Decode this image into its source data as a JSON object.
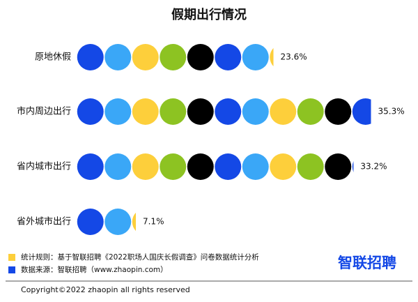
{
  "chart_data": {
    "type": "pictogram",
    "title": "假期出行情况",
    "categories": [
      "原地休假",
      "市内周边出行",
      "省内城市出行",
      "省外城市出行"
    ],
    "values": [
      23.6,
      35.3,
      33.2,
      7.1
    ],
    "value_labels": [
      "23.6%",
      "35.3%",
      "33.2%",
      "7.1%"
    ],
    "colors": [
      "#1448e6",
      "#3aa7f7",
      "#fdcf3b",
      "#8dc322",
      "#000000"
    ],
    "xlim": [
      0,
      39.6
    ]
  },
  "footer": {
    "notes": [
      {
        "text": "统计规则：基于智联招聘《2022职场人国庆长假调查》问卷数据统计分析",
        "color": "#fdcf3b"
      },
      {
        "text": "数据来源：智联招聘（www.zhaopin.com）",
        "color": "#1448e6"
      }
    ],
    "logo": "智联招聘",
    "copyright": "Copyright©2022 zhaopin all rights reserved"
  }
}
